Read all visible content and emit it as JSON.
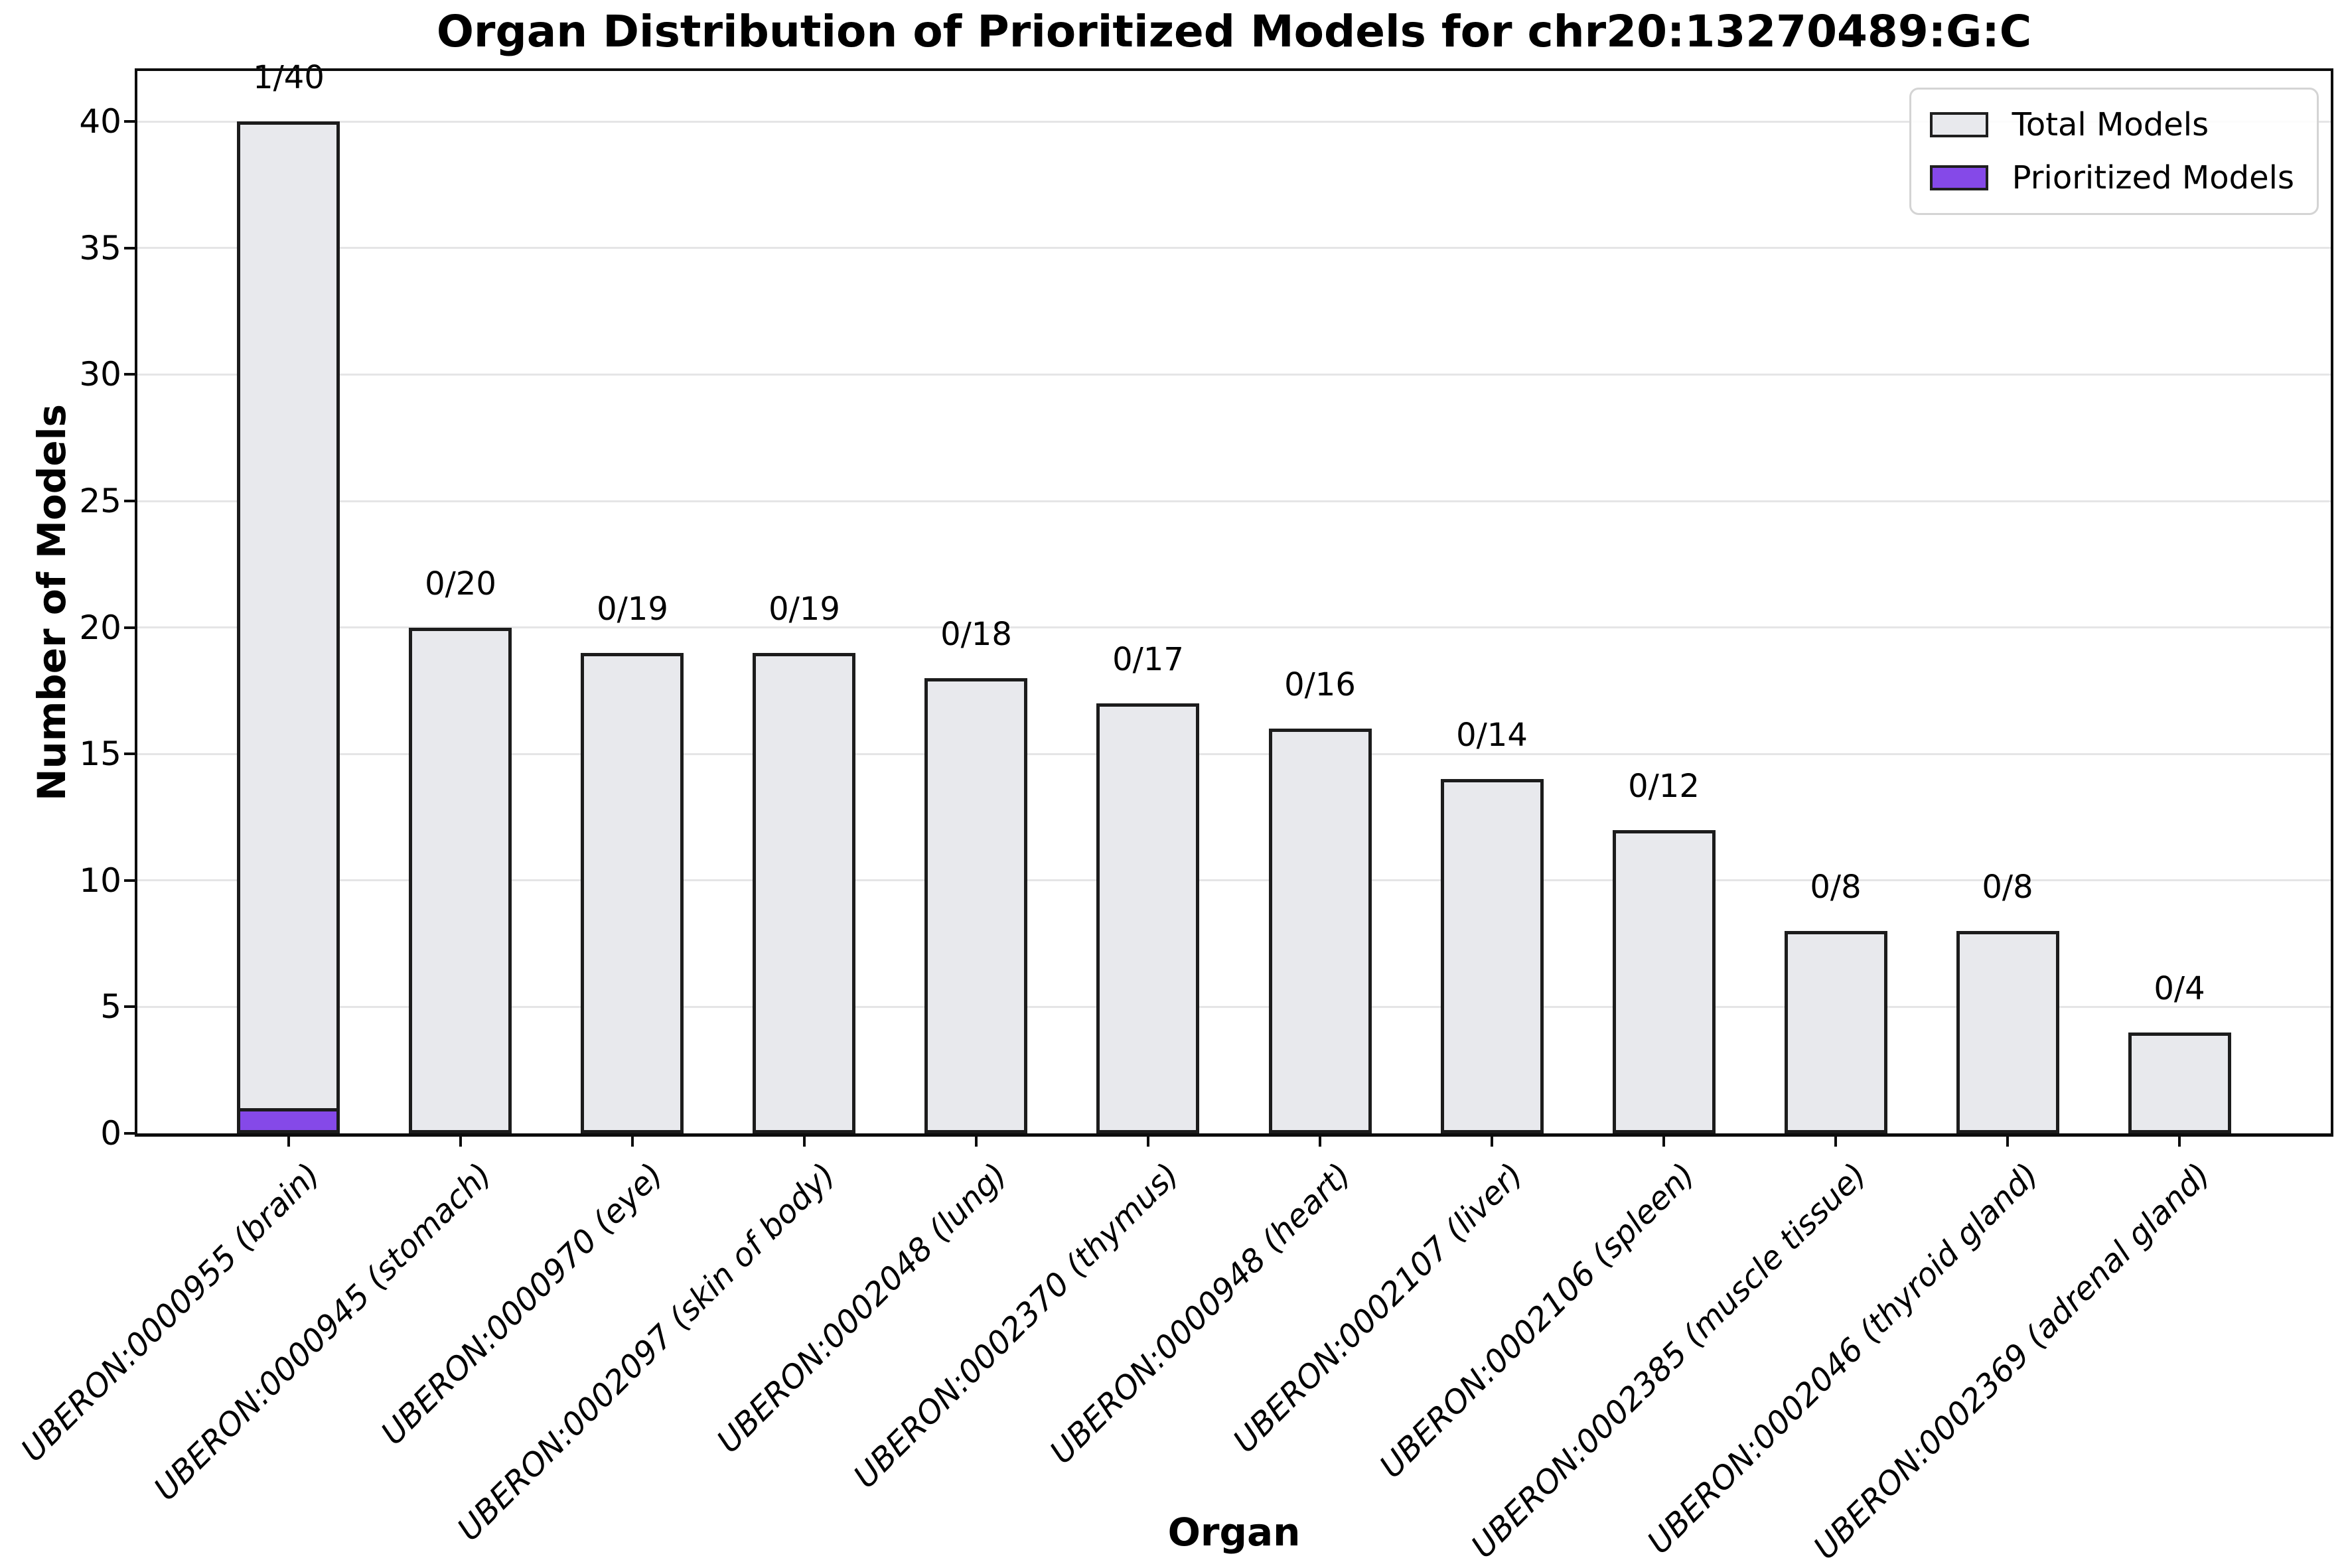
{
  "chart_data": {
    "type": "bar",
    "stacked_overlay": true,
    "title": "Organ Distribution of Prioritized Models for chr20:13270489:G:C",
    "xlabel": "Organ",
    "ylabel": "Number of Models",
    "ylim": [
      0,
      42
    ],
    "yticks": [
      0,
      5,
      10,
      15,
      20,
      25,
      30,
      35,
      40
    ],
    "grid": "horizontal",
    "legend_position": "upper right",
    "categories": [
      "UBERON:0000955 (brain)",
      "UBERON:0000945 (stomach)",
      "UBERON:0000970 (eye)",
      "UBERON:0002097 (skin of body)",
      "UBERON:0002048 (lung)",
      "UBERON:0002370 (thymus)",
      "UBERON:0000948 (heart)",
      "UBERON:0002107 (liver)",
      "UBERON:0002106 (spleen)",
      "UBERON:0002385 (muscle tissue)",
      "UBERON:0002046 (thyroid gland)",
      "UBERON:0002369 (adrenal gland)"
    ],
    "series": [
      {
        "name": "Total Models",
        "color": "#e8e9ed",
        "values": [
          40,
          20,
          19,
          19,
          18,
          17,
          16,
          14,
          12,
          8,
          8,
          4
        ]
      },
      {
        "name": "Prioritized Models",
        "color": "#8549e8",
        "values": [
          1,
          0,
          0,
          0,
          0,
          0,
          0,
          0,
          0,
          0,
          0,
          0
        ]
      }
    ],
    "bar_labels": [
      "1/40",
      "0/20",
      "0/19",
      "0/19",
      "0/18",
      "0/17",
      "0/16",
      "0/14",
      "0/12",
      "0/8",
      "0/8",
      "0/4"
    ]
  },
  "colors": {
    "bar_fill": "#e8e9ed",
    "prioritized_fill": "#8549e8",
    "bar_edge": "#1c1c1c",
    "gridline": "#e5e5e6",
    "spine": "#0d0d0d",
    "legend_border": "#d4d4d4",
    "text": "#000000"
  }
}
